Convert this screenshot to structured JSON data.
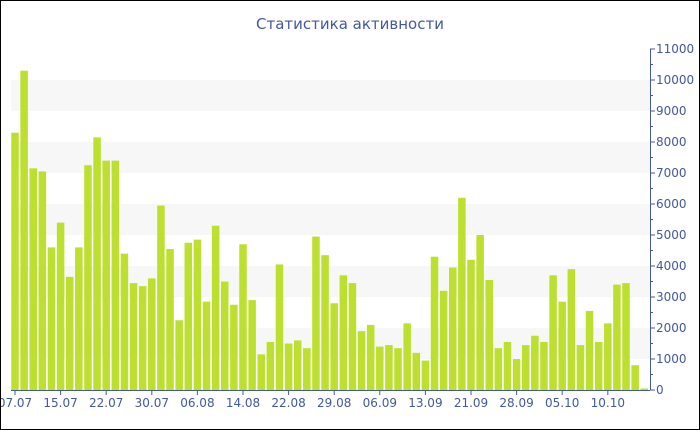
{
  "chart_data": {
    "type": "bar",
    "title": "Статистика активности",
    "bar_color": "#bde030",
    "axis_color": "#4458a0",
    "band_color": "#f7f7f7",
    "y_axis_position": "right",
    "ylim": [
      0,
      11000
    ],
    "yticks": [
      0,
      1000,
      2000,
      3000,
      4000,
      5000,
      6000,
      7000,
      8000,
      9000,
      10000,
      11000
    ],
    "grid": "alternating horizontal bands",
    "x_tick_labels": [
      {
        "bar": 0,
        "label": "07.07"
      },
      {
        "bar": 5,
        "label": "15.07"
      },
      {
        "bar": 10,
        "label": "22.07"
      },
      {
        "bar": 15,
        "label": "30.07"
      },
      {
        "bar": 20,
        "label": "06.08"
      },
      {
        "bar": 25,
        "label": "14.08"
      },
      {
        "bar": 30,
        "label": "22.08"
      },
      {
        "bar": 35,
        "label": "29.08"
      },
      {
        "bar": 40,
        "label": "06.09"
      },
      {
        "bar": 45,
        "label": "13.09"
      },
      {
        "bar": 50,
        "label": "21.09"
      },
      {
        "bar": 55,
        "label": "28.09"
      },
      {
        "bar": 60,
        "label": "05.10"
      },
      {
        "bar": 65,
        "label": "10.10"
      }
    ],
    "values": [
      8300,
      10300,
      7150,
      7050,
      4600,
      5400,
      3650,
      4600,
      7250,
      8150,
      7400,
      7400,
      4400,
      3450,
      3350,
      3600,
      5950,
      4550,
      2250,
      4750,
      4850,
      2850,
      5300,
      3500,
      2750,
      4700,
      2900,
      1150,
      1550,
      4050,
      1500,
      1600,
      1350,
      4950,
      4350,
      2800,
      3700,
      3450,
      1900,
      2100,
      1400,
      1450,
      1350,
      2150,
      1200,
      950,
      4300,
      3200,
      3950,
      6200,
      4200,
      5000,
      3550,
      1350,
      1550,
      1000,
      1450,
      1750,
      1550,
      3700,
      2850,
      3900,
      1450,
      2550,
      1550,
      2150,
      3400,
      3450,
      800,
      50
    ]
  }
}
